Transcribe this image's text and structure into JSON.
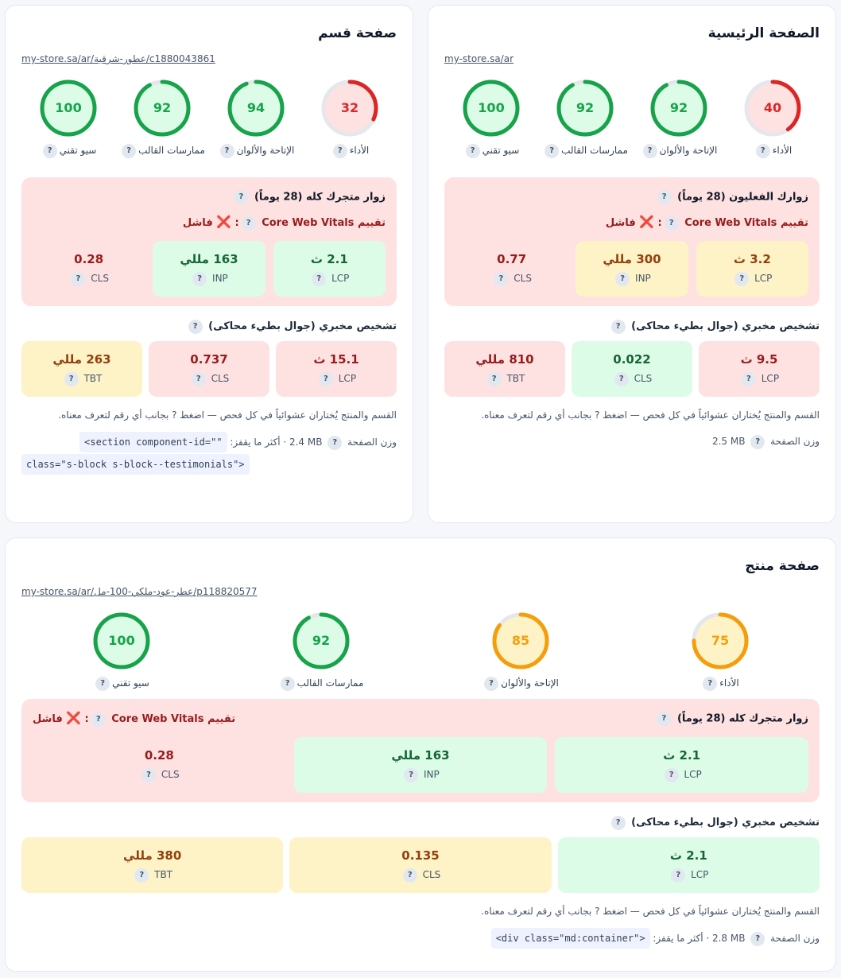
{
  "home": {
    "title": "الصفحة الرئيسية",
    "url": "my-store.sa/ar",
    "scores": [
      {
        "label": "الأداء",
        "value": "40",
        "fraction": 0.4,
        "color": "#dc2626",
        "bg": "#fee2e2"
      },
      {
        "label": "الإتاحة والألوان",
        "value": "92",
        "fraction": 0.92,
        "color": "#16a34a",
        "bg": "#dcfce7"
      },
      {
        "label": "ممارسات القالب",
        "value": "92",
        "fraction": 0.92,
        "color": "#16a34a",
        "bg": "#dcfce7"
      },
      {
        "label": "سيو تقني",
        "value": "100",
        "fraction": 1.0,
        "color": "#16a34a",
        "bg": "#dcfce7"
      }
    ],
    "field_title": "زوارك الفعليون (28 يوماً)",
    "verdict_prefix": "تقييم",
    "verdict_cwv": "Core Web Vitals",
    "verdict_result": "فاشل",
    "field_metrics": [
      {
        "value": "3.2 ث",
        "label": "LCP",
        "status": "mid"
      },
      {
        "value": "300 مللي",
        "label": "INP",
        "status": "mid"
      },
      {
        "value": "0.77",
        "label": "CLS",
        "status": "plain"
      }
    ],
    "lab_title": "تشخيص مخبري (جوال بطيء محاكى)",
    "lab_metrics": [
      {
        "value": "9.5 ث",
        "label": "LCP",
        "status": "bad"
      },
      {
        "value": "0.022",
        "label": "CLS",
        "status": "good"
      },
      {
        "value": "810 مللي",
        "label": "TBT",
        "status": "bad"
      }
    ],
    "note": "القسم والمنتج يُختاران عشوائياً في كل فحص — اضغط ? بجانب أي رقم لتعرف معناه.",
    "weight_label": "وزن الصفحة",
    "weight_value": "2.5 MB"
  },
  "category": {
    "title": "صفحة قسم",
    "url": "my-store.sa/ar/عطور-شرقية/c1880043861",
    "scores": [
      {
        "label": "الأداء",
        "value": "32",
        "fraction": 0.32,
        "color": "#dc2626",
        "bg": "#fee2e2"
      },
      {
        "label": "الإتاحة والألوان",
        "value": "94",
        "fraction": 0.94,
        "color": "#16a34a",
        "bg": "#dcfce7"
      },
      {
        "label": "ممارسات القالب",
        "value": "92",
        "fraction": 0.92,
        "color": "#16a34a",
        "bg": "#dcfce7"
      },
      {
        "label": "سيو تقني",
        "value": "100",
        "fraction": 1.0,
        "color": "#16a34a",
        "bg": "#dcfce7"
      }
    ],
    "field_title": "زوار متجرك كله (28 يوماً)",
    "verdict_prefix": "تقييم",
    "verdict_cwv": "Core Web Vitals",
    "verdict_result": "فاشل",
    "field_metrics": [
      {
        "value": "2.1 ث",
        "label": "LCP",
        "status": "good"
      },
      {
        "value": "163 مللي",
        "label": "INP",
        "status": "good"
      },
      {
        "value": "0.28",
        "label": "CLS",
        "status": "plain"
      }
    ],
    "lab_title": "تشخيص مخبري (جوال بطيء محاكى)",
    "lab_metrics": [
      {
        "value": "15.1 ث",
        "label": "LCP",
        "status": "bad"
      },
      {
        "value": "0.737",
        "label": "CLS",
        "status": "bad"
      },
      {
        "value": "263 مللي",
        "label": "TBT",
        "status": "mid"
      }
    ],
    "note": "القسم والمنتج يُختاران عشوائياً في كل فحص — اضغط ? بجانب أي رقم لتعرف معناه.",
    "weight_label": "وزن الصفحة",
    "weight_value": "2.4 MB",
    "jump_label": "· أكثر ما يقفز:",
    "jump_code_1": "<section component-id=\"\"",
    "jump_code_2": "class=\"s-block s-block--testimonials\">"
  },
  "product": {
    "title": "صفحة منتج",
    "url": "my-store.sa/ar/عطر-عود-ملكي-100-مل/p118820577",
    "scores": [
      {
        "label": "الأداء",
        "value": "75",
        "fraction": 0.75,
        "color": "#f59e0b",
        "bg": "#fef3c7"
      },
      {
        "label": "الإتاحة والألوان",
        "value": "85",
        "fraction": 0.85,
        "color": "#f59e0b",
        "bg": "#fef3c7"
      },
      {
        "label": "ممارسات القالب",
        "value": "92",
        "fraction": 0.92,
        "color": "#16a34a",
        "bg": "#dcfce7"
      },
      {
        "label": "سيو تقني",
        "value": "100",
        "fraction": 1.0,
        "color": "#16a34a",
        "bg": "#dcfce7"
      }
    ],
    "field_title": "زوار متجرك كله (28 يوماً)",
    "verdict_prefix": "تقييم",
    "verdict_cwv": "Core Web Vitals",
    "verdict_result": "فاشل",
    "field_metrics": [
      {
        "value": "2.1 ث",
        "label": "LCP",
        "status": "good"
      },
      {
        "value": "163 مللي",
        "label": "INP",
        "status": "good"
      },
      {
        "value": "0.28",
        "label": "CLS",
        "status": "plain"
      }
    ],
    "lab_title": "تشخيص مخبري (جوال بطيء محاكى)",
    "lab_metrics": [
      {
        "value": "2.1 ث",
        "label": "LCP",
        "status": "good"
      },
      {
        "value": "0.135",
        "label": "CLS",
        "status": "mid"
      },
      {
        "value": "380 مللي",
        "label": "TBT",
        "status": "mid"
      }
    ],
    "note": "القسم والمنتج يُختاران عشوائياً في كل فحص — اضغط ? بجانب أي رقم لتعرف معناه.",
    "weight_label": "وزن الصفحة",
    "weight_value": "2.8 MB",
    "jump_label": "· أكثر ما يقفز:",
    "jump_code_1": "<div class=\"md:container\">"
  },
  "help_mark": "?",
  "fail_mark": "❌"
}
